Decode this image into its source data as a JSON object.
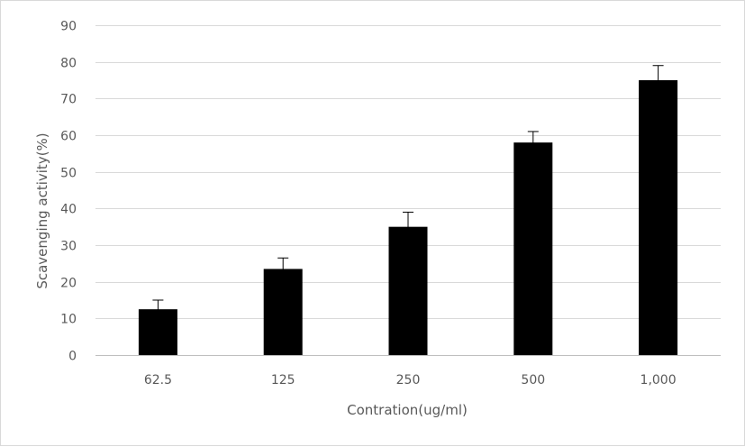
{
  "chart_data": {
    "type": "bar",
    "title": "",
    "xlabel": "Contration(ug/ml)",
    "ylabel": "Scavenging activity(%)",
    "categories": [
      "62.5",
      "125",
      "250",
      "500",
      "1,000"
    ],
    "series": [
      {
        "values": [
          12.5,
          23.5,
          35,
          58,
          75
        ],
        "error": [
          2.5,
          3,
          4,
          3,
          4
        ],
        "color": "#000000"
      }
    ],
    "ylim": [
      0,
      90
    ],
    "yticks": [
      0,
      10,
      20,
      30,
      40,
      50,
      60,
      70,
      80,
      90
    ],
    "grid": true,
    "legend": "none"
  }
}
